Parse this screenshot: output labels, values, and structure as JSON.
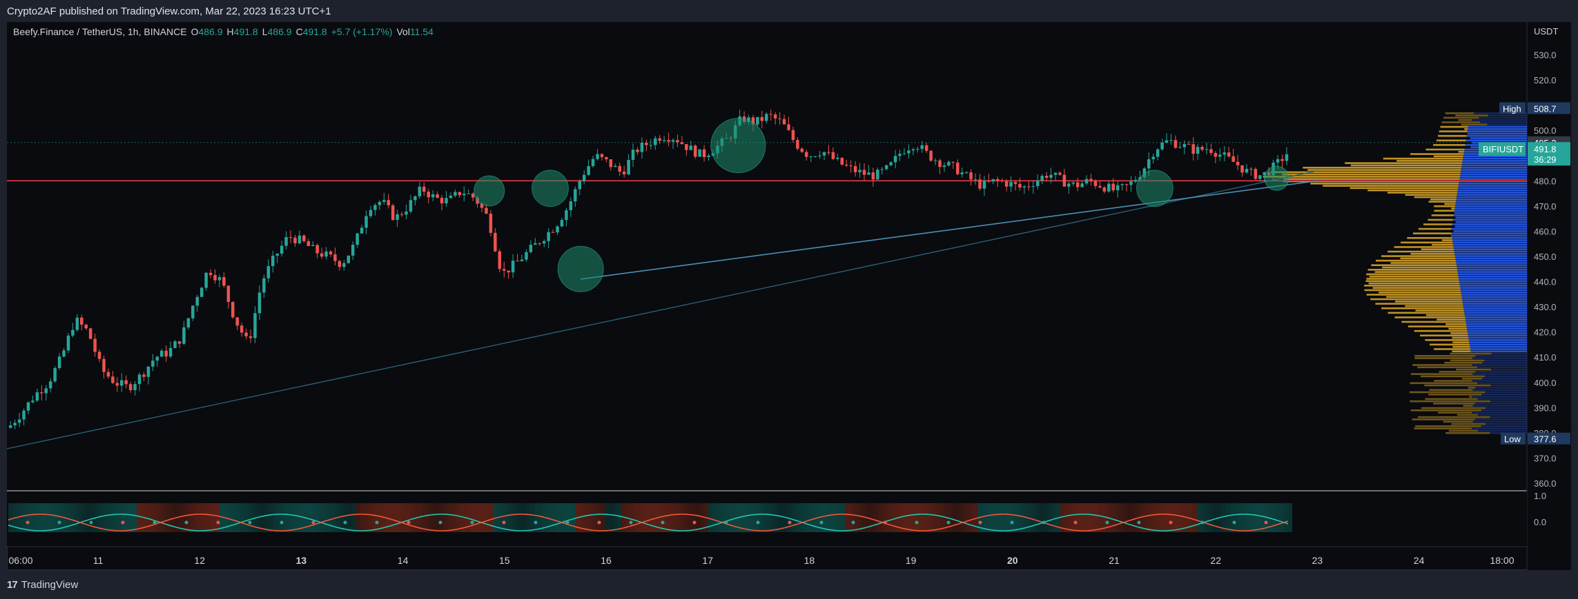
{
  "publish_line": "Crypto2AF published on TradingView.com, Mar 22, 2023 16:23 UTC+1",
  "footer": {
    "brand": "TradingView",
    "logo": "17"
  },
  "header": {
    "symbol": "Beefy.Finance / TetherUS, 1h, BINANCE",
    "open_label": "O",
    "open": "486.9",
    "high_label": "H",
    "high": "491.8",
    "low_label": "L",
    "low": "486.9",
    "close_label": "C",
    "close": "491.8",
    "change": "+5.7 (+1.17%)",
    "vol_label": "Vol",
    "vol": "11.54"
  },
  "colors": {
    "up": "#26a69a",
    "down": "#ef5350",
    "support": "#f23645",
    "trend": "#4a90b8",
    "profile_gold": "#d4a229",
    "profile_blue": "#2962ff",
    "circle": "#1e8c6a"
  },
  "chart_data": {
    "type": "candlestick",
    "symbol": "BIFIUSDT",
    "interval": "1h",
    "currency": "USDT",
    "y_ticks": [
      "360.0",
      "370.0",
      "380.0",
      "390.0",
      "400.0",
      "410.0",
      "420.0",
      "430.0",
      "440.0",
      "450.0",
      "460.0",
      "470.0",
      "480.0",
      "490.0",
      "500.0",
      "510.0",
      "520.0",
      "530.0"
    ],
    "ylim": [
      357,
      543
    ],
    "x_ticks": [
      "06:00",
      "11",
      "12",
      "13",
      "14",
      "15",
      "16",
      "17",
      "18",
      "19",
      "20",
      "21",
      "22",
      "23",
      "24",
      "18:00"
    ],
    "bold_x_ticks": [
      "13",
      "20"
    ],
    "last_price": "491.8",
    "countdown": "36:29",
    "price_495": "495.2",
    "high_label": "High",
    "high_value": "508.7",
    "low_label": "Low",
    "low_value": "377.6",
    "support_level": 480,
    "dotted_level": 495.2,
    "close_path": [
      [
        0,
        382
      ],
      [
        4,
        388
      ],
      [
        8,
        395
      ],
      [
        10,
        400
      ],
      [
        11,
        410
      ],
      [
        11.25,
        425
      ],
      [
        11.5,
        420
      ],
      [
        11.8,
        405
      ],
      [
        12.0,
        400
      ],
      [
        12.3,
        398
      ],
      [
        12.5,
        403
      ],
      [
        12.7,
        410
      ],
      [
        13,
        412
      ],
      [
        13.5,
        418
      ],
      [
        13.6,
        433
      ],
      [
        13.8,
        445
      ],
      [
        14,
        440
      ],
      [
        14.2,
        425
      ],
      [
        14.5,
        415
      ],
      [
        15,
        440
      ],
      [
        15.4,
        450
      ],
      [
        15.7,
        458
      ],
      [
        16,
        456
      ],
      [
        16.4,
        452
      ],
      [
        16.6,
        450
      ],
      [
        16.8,
        447
      ],
      [
        17,
        455
      ],
      [
        17.4,
        470
      ],
      [
        17.7,
        472
      ],
      [
        17.9,
        465
      ],
      [
        18.2,
        470
      ],
      [
        18.5,
        477
      ],
      [
        18.8,
        473
      ],
      [
        19.0,
        472
      ],
      [
        19.3,
        476
      ],
      [
        19.5,
        473
      ],
      [
        19.6,
        465
      ],
      [
        19.7,
        443
      ],
      [
        19.85,
        447
      ],
      [
        20.1,
        452
      ],
      [
        20.5,
        457
      ],
      [
        20.9,
        462
      ],
      [
        21.2,
        470
      ],
      [
        21.4,
        482
      ],
      [
        21.6,
        490
      ],
      [
        21.9,
        487
      ],
      [
        22.2,
        483
      ],
      [
        22.4,
        492
      ],
      [
        22.7,
        495
      ],
      [
        23.0,
        498
      ],
      [
        23.4,
        497
      ],
      [
        23.7,
        493
      ],
      [
        24.0,
        490
      ],
      [
        24.3,
        493
      ],
      [
        24.5,
        497
      ],
      [
        24.7,
        505
      ],
      [
        24.9,
        503
      ],
      [
        25.1,
        506
      ],
      [
        25.3,
        503
      ],
      [
        25.5,
        495
      ],
      [
        25.8,
        490
      ],
      [
        26.1,
        492
      ],
      [
        26.5,
        488
      ],
      [
        26.9,
        485
      ],
      [
        27.3,
        483
      ],
      [
        27.6,
        482
      ],
      [
        27.9,
        485
      ],
      [
        28.3,
        492
      ],
      [
        28.5,
        495
      ],
      [
        28.8,
        490
      ],
      [
        29.1,
        487
      ],
      [
        29.4,
        485
      ],
      [
        29.6,
        481
      ],
      [
        29.9,
        478
      ],
      [
        30.2,
        480
      ],
      [
        30.5,
        479
      ],
      [
        30.7,
        477
      ],
      [
        31.0,
        480
      ],
      [
        31.3,
        483
      ],
      [
        31.6,
        480
      ],
      [
        31.8,
        478
      ],
      [
        32.0,
        480
      ],
      [
        32.2,
        478
      ],
      [
        32.4,
        476
      ],
      [
        32.6,
        478
      ],
      [
        32.8,
        484
      ],
      [
        33.0,
        493
      ],
      [
        33.3,
        496
      ],
      [
        33.5,
        494
      ],
      [
        33.8,
        492
      ],
      [
        34.0,
        493
      ],
      [
        34.3,
        490
      ],
      [
        34.6,
        487
      ],
      [
        34.8,
        483
      ],
      [
        35.0,
        482
      ],
      [
        35.2,
        486
      ],
      [
        35.4,
        491.8
      ]
    ],
    "circles": [
      {
        "x": 14.85,
        "y": 476,
        "r": 1.0
      },
      {
        "x": 15.45,
        "y": 477,
        "r": 1.2
      },
      {
        "x": 15.75,
        "y": 445,
        "r": 1.5
      },
      {
        "x": 17.3,
        "y": 494,
        "r": 1.8
      },
      {
        "x": 21.4,
        "y": 477,
        "r": 1.2
      },
      {
        "x": 22.6,
        "y": 481,
        "r": 0.8
      }
    ],
    "trendlines": [
      {
        "from": [
          10.0,
          373
        ],
        "to": [
          23.0,
          484
        ]
      },
      {
        "from": [
          15.75,
          441
        ],
        "to": [
          23.0,
          480
        ]
      }
    ],
    "volume_profile": {
      "upper_color": "gold",
      "lower_color": "blue",
      "poc_zone": [
        412,
        502
      ]
    },
    "oscillator": {
      "levels": [
        "1.0",
        "0.0"
      ]
    }
  }
}
